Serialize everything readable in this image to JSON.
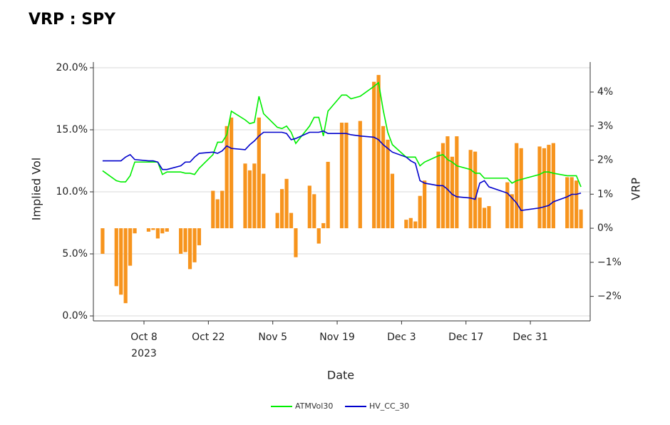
{
  "chart_data": {
    "type": "bar-line",
    "title": "VRP : SPY",
    "xlabel": "Date",
    "ylabel": "Implied Vol",
    "y2label": "VRP",
    "x": [
      "2023-09-29",
      "2023-10-02",
      "2023-10-03",
      "2023-10-04",
      "2023-10-05",
      "2023-10-06",
      "2023-10-09",
      "2023-10-10",
      "2023-10-11",
      "2023-10-12",
      "2023-10-13",
      "2023-10-16",
      "2023-10-17",
      "2023-10-18",
      "2023-10-19",
      "2023-10-20",
      "2023-10-23",
      "2023-10-24",
      "2023-10-25",
      "2023-10-26",
      "2023-10-27",
      "2023-10-30",
      "2023-10-31",
      "2023-11-01",
      "2023-11-02",
      "2023-11-03",
      "2023-11-06",
      "2023-11-07",
      "2023-11-08",
      "2023-11-09",
      "2023-11-10",
      "2023-11-13",
      "2023-11-14",
      "2023-11-15",
      "2023-11-16",
      "2023-11-17",
      "2023-11-20",
      "2023-11-21",
      "2023-11-22",
      "2023-11-24",
      "2023-11-27",
      "2023-11-28",
      "2023-11-29",
      "2023-11-30",
      "2023-12-01",
      "2023-12-04",
      "2023-12-05",
      "2023-12-06",
      "2023-12-07",
      "2023-12-08",
      "2023-12-11",
      "2023-12-12",
      "2023-12-13",
      "2023-12-14",
      "2023-12-15",
      "2023-12-18",
      "2023-12-19",
      "2023-12-20",
      "2023-12-21",
      "2023-12-22",
      "2023-12-26",
      "2023-12-27",
      "2023-12-28",
      "2023-12-29",
      "2024-01-02",
      "2024-01-03",
      "2024-01-04",
      "2024-01-05",
      "2024-01-08",
      "2024-01-09",
      "2024-01-10",
      "2024-01-11"
    ],
    "series": [
      {
        "name": "ATMVol30",
        "type": "line",
        "color": "#00ee00",
        "values": [
          11.7,
          10.9,
          10.8,
          10.8,
          11.3,
          12.4,
          12.4,
          12.4,
          12.4,
          11.4,
          11.6,
          11.6,
          11.5,
          11.5,
          11.4,
          11.9,
          13.0,
          14.0,
          14.0,
          14.6,
          16.5,
          15.8,
          15.5,
          15.6,
          17.7,
          16.3,
          15.2,
          15.1,
          15.3,
          14.8,
          13.9,
          15.3,
          16.0,
          16.0,
          14.5,
          16.5,
          17.8,
          17.8,
          17.5,
          17.7,
          18.5,
          18.8,
          16.6,
          14.8,
          13.8,
          12.8,
          12.8,
          12.8,
          12.1,
          12.4,
          12.9,
          13.0,
          12.6,
          12.4,
          12.1,
          11.8,
          11.5,
          11.5,
          11.1,
          11.1,
          11.1,
          10.7,
          10.9,
          11.0,
          11.4,
          11.6,
          11.6,
          11.5,
          11.3,
          11.3,
          11.3,
          10.4
        ]
      },
      {
        "name": "HV_CC_30",
        "type": "line",
        "color": "#0000cc",
        "values": [
          12.5,
          12.5,
          12.5,
          12.8,
          13.0,
          12.6,
          12.5,
          12.5,
          12.4,
          11.8,
          11.8,
          12.1,
          12.4,
          12.4,
          12.8,
          13.1,
          13.2,
          13.1,
          13.3,
          13.7,
          13.5,
          13.4,
          13.8,
          14.1,
          14.5,
          14.8,
          14.8,
          14.8,
          14.7,
          14.2,
          14.3,
          14.8,
          14.8,
          14.8,
          14.9,
          14.7,
          14.7,
          14.7,
          14.6,
          14.5,
          14.4,
          14.2,
          13.8,
          13.5,
          13.2,
          12.8,
          12.5,
          12.3,
          10.9,
          10.7,
          10.5,
          10.5,
          10.2,
          9.8,
          9.6,
          9.5,
          9.4,
          10.7,
          10.9,
          10.4,
          9.9,
          9.5,
          9.1,
          8.5,
          8.7,
          8.8,
          8.9,
          9.2,
          9.6,
          9.8,
          9.8,
          9.9
        ]
      },
      {
        "name": "VRP",
        "type": "bar",
        "axis": "y2",
        "legend": false,
        "color": "#f7941d",
        "values": [
          -0.75,
          -1.7,
          -1.95,
          -2.2,
          -1.1,
          -0.15,
          -0.1,
          -0.05,
          -0.3,
          -0.15,
          -0.1,
          -0.75,
          -0.7,
          -1.2,
          -1.0,
          -0.5,
          1.1,
          0.85,
          1.1,
          3.0,
          3.25,
          1.9,
          1.7,
          1.9,
          3.25,
          1.6,
          0.45,
          1.15,
          1.45,
          0.45,
          -0.85,
          1.25,
          1.0,
          -0.45,
          0.15,
          1.95,
          3.1,
          3.1,
          null,
          3.15,
          4.3,
          4.5,
          3.0,
          2.6,
          1.6,
          0.25,
          0.3,
          0.2,
          0.95,
          1.4,
          2.25,
          2.5,
          2.7,
          2.1,
          2.7,
          2.3,
          2.25,
          0.9,
          0.6,
          0.65,
          1.35,
          1.0,
          2.5,
          2.35,
          2.4,
          2.35,
          2.45,
          2.5,
          1.5,
          1.5,
          1.4,
          0.55
        ]
      }
    ],
    "xlim": [
      "2023-09-27",
      "2024-01-13"
    ],
    "xticks": [
      {
        "value": "2023-10-08",
        "label": "Oct 8",
        "year": "2023"
      },
      {
        "value": "2023-10-22",
        "label": "Oct 22"
      },
      {
        "value": "2023-11-05",
        "label": "Nov 5"
      },
      {
        "value": "2023-11-19",
        "label": "Nov 19"
      },
      {
        "value": "2023-12-03",
        "label": "Dec 3"
      },
      {
        "value": "2023-12-17",
        "label": "Dec 17"
      },
      {
        "value": "2023-12-31",
        "label": "Dec 31"
      }
    ],
    "ylim": [
      -0.4,
      20.46
    ],
    "yticks": [
      {
        "value": 0,
        "label": "0.0%"
      },
      {
        "value": 5,
        "label": "5.0%"
      },
      {
        "value": 10,
        "label": "10.0%"
      },
      {
        "value": 15,
        "label": "15.0%"
      },
      {
        "value": 20,
        "label": "20.0%"
      }
    ],
    "y2lim": [
      -2.72,
      4.88
    ],
    "y2ticks": [
      {
        "value": -2,
        "label": "−2%"
      },
      {
        "value": -1,
        "label": "−1%"
      },
      {
        "value": 0,
        "label": "0%"
      },
      {
        "value": 1,
        "label": "1%"
      },
      {
        "value": 2,
        "label": "2%"
      },
      {
        "value": 3,
        "label": "3%"
      },
      {
        "value": 4,
        "label": "4%"
      }
    ],
    "grid": true,
    "legend": "bottom"
  }
}
